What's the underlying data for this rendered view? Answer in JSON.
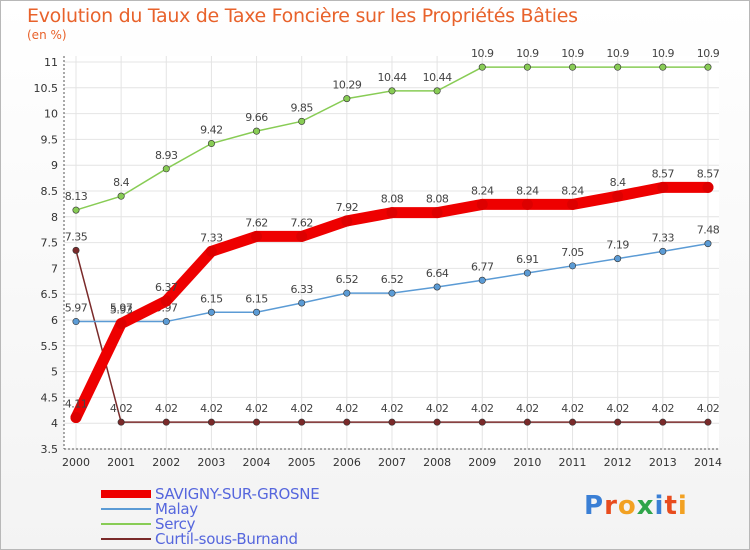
{
  "title": "Evolution du Taux de Taxe Foncière sur les Propriétés Bâties",
  "unit_label": "(en %)",
  "logo": {
    "text": "Proxiti",
    "letters": [
      "P",
      "r",
      "o",
      "x",
      "i",
      "t",
      "i"
    ],
    "colors": [
      "#3a7fd5",
      "#e84c1e",
      "#f2a122",
      "#2fa54a",
      "#3a7fd5",
      "#e84c1e",
      "#f2a122"
    ]
  },
  "chart_data": {
    "type": "line",
    "title": "Evolution du Taux de Taxe Foncière sur les Propriétés Bâties",
    "ylabel": "(en %)",
    "xlabel": "",
    "categories": [
      "2000",
      "2001",
      "2002",
      "2003",
      "2004",
      "2005",
      "2006",
      "2007",
      "2008",
      "2009",
      "2010",
      "2011",
      "2012",
      "2013",
      "2014"
    ],
    "ylim": [
      3.5,
      11
    ],
    "yticks": [
      "3.5",
      "4",
      "4.5",
      "5",
      "5.5",
      "6",
      "6.5",
      "7",
      "7.5",
      "8",
      "8.5",
      "9",
      "9.5",
      "10",
      "10.5",
      "11"
    ],
    "grid": true,
    "series": [
      {
        "name": "Curtil-sous-Burnand",
        "color": "#7a2a2a",
        "thick": false,
        "values": [
          7.35,
          4.02,
          4.02,
          4.02,
          4.02,
          4.02,
          4.02,
          4.02,
          4.02,
          4.02,
          4.02,
          4.02,
          4.02,
          4.02,
          4.02
        ],
        "labels": [
          "7.35",
          "4.02",
          "4.02",
          "4.02",
          "4.02",
          "4.02",
          "4.02",
          "4.02",
          "4.02",
          "4.02",
          "4.02",
          "4.02",
          "4.02",
          "4.02",
          "4.02"
        ]
      },
      {
        "name": "Sercy",
        "color": "#88cc55",
        "thick": false,
        "values": [
          8.13,
          8.4,
          8.93,
          9.42,
          9.66,
          9.85,
          10.29,
          10.44,
          10.44,
          10.9,
          10.9,
          10.9,
          10.9,
          10.9,
          10.9
        ],
        "labels": [
          "8.13",
          "8.4",
          "8.93",
          "9.42",
          "9.66",
          "9.85",
          "10.29",
          "10.44",
          "10.44",
          "10.9",
          "10.9",
          "10.9",
          "10.9",
          "10.9",
          "10.9"
        ]
      },
      {
        "name": "Malay",
        "color": "#5b9bd5",
        "thick": false,
        "values": [
          5.97,
          5.97,
          5.97,
          6.15,
          6.15,
          6.33,
          6.52,
          6.52,
          6.64,
          6.77,
          6.91,
          7.05,
          7.19,
          7.33,
          7.48
        ],
        "labels": [
          "5.97",
          "5.97",
          "5.97",
          "6.15",
          "6.15",
          "6.33",
          "6.52",
          "6.52",
          "6.64",
          "6.77",
          "6.91",
          "7.05",
          "7.19",
          "7.33",
          "7.48"
        ]
      },
      {
        "name": "SAVIGNY-SUR-GROSNE",
        "color": "#ee0000",
        "thick": true,
        "values": [
          4.11,
          5.93,
          6.37,
          7.33,
          7.62,
          7.62,
          7.92,
          8.08,
          8.08,
          8.24,
          8.24,
          8.24,
          8.4,
          8.57,
          8.57
        ],
        "labels": [
          "4.11",
          "5.93",
          "6.37",
          "7.33",
          "7.62",
          "7.62",
          "7.92",
          "8.08",
          "8.08",
          "8.24",
          "8.24",
          "8.24",
          "8.4",
          "8.57",
          "8.57"
        ]
      }
    ],
    "legend": [
      "SAVIGNY-SUR-GROSNE",
      "Malay",
      "Sercy",
      "Curtil-sous-Burnand"
    ],
    "legend_position": "bottom-left"
  }
}
